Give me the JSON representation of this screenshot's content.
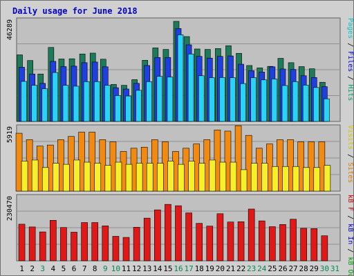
{
  "chart_data": {
    "type": "bar",
    "title": "Daily usage for June 2018",
    "categories": [
      "1",
      "2",
      "3",
      "4",
      "5",
      "6",
      "7",
      "8",
      "9",
      "10",
      "11",
      "12",
      "13",
      "14",
      "15",
      "16",
      "17",
      "18",
      "19",
      "20",
      "21",
      "22",
      "23",
      "24",
      "25",
      "26",
      "27",
      "28",
      "29",
      "30",
      "31"
    ],
    "weekend_days": [
      "3",
      "9",
      "10",
      "16",
      "17",
      "23",
      "24",
      "30",
      "31"
    ],
    "panels": [
      {
        "id": "top",
        "max_label": "46289",
        "ymax": 46289,
        "right_label_parts": [
          {
            "text": "Pages",
            "color": "#00c8c8"
          },
          {
            "text": " / ",
            "color": "#000000"
          },
          {
            "text": "Files",
            "color": "#0000e0"
          },
          {
            "text": " / ",
            "color": "#000000"
          },
          {
            "text": "Hits",
            "color": "#00a070"
          }
        ],
        "series": [
          {
            "name": "Hits",
            "color": "#1e7b5a",
            "offset": 0,
            "values": [
              30600,
              null,
              null,
              null,
              null,
              null,
              null,
              null,
              null,
              null,
              null,
              null,
              null,
              null,
              null,
              null,
              null,
              null,
              null,
              null,
              null,
              null,
              null,
              null,
              null,
              null,
              null,
              null,
              null,
              null,
              null
            ]
          },
          {
            "name": "Files",
            "color": "#1f3fe0",
            "offset": 1,
            "values": [
              24900,
              null,
              null,
              null,
              null,
              null,
              null,
              null,
              null,
              null,
              null,
              null,
              null,
              null,
              null,
              null,
              null,
              null,
              null,
              null,
              null,
              null,
              null,
              null,
              null,
              null,
              null,
              null,
              null,
              null,
              null
            ]
          },
          {
            "name": "Pages",
            "color": "#29d3f5",
            "offset": 2,
            "values": [
              18400,
              null,
              null,
              null,
              null,
              null,
              null,
              null,
              null,
              null,
              null,
              null,
              null,
              null,
              null,
              null,
              null,
              null,
              null,
              null,
              null,
              null,
              null,
              null,
              null,
              null,
              null,
              null,
              null,
              null,
              null
            ]
          }
        ]
      },
      {
        "id": "mid",
        "max_label": "5919",
        "ymax": 5919,
        "right_label_parts": [
          {
            "text": "Visits",
            "color": "#d4c400"
          },
          {
            "text": " / ",
            "color": "#000000"
          },
          {
            "text": "Sites",
            "color": "#e07a00"
          }
        ],
        "series": [
          {
            "name": "Sites",
            "color": "#f28a12",
            "offset": 0,
            "values": [
              null
            ]
          },
          {
            "name": "Visits",
            "color": "#f5f02a",
            "offset": 1,
            "values": [
              null
            ]
          }
        ]
      },
      {
        "id": "bot",
        "max_label": "230470",
        "ymax": 230470,
        "right_label_parts": [
          {
            "text": "kB F",
            "color": "#cc0000"
          },
          {
            "text": " / ",
            "color": "#000000"
          },
          {
            "text": "kB In",
            "color": "#0000cc"
          },
          {
            "text": " / ",
            "color": "#000000"
          },
          {
            "text": "kB Out",
            "color": "#00a000"
          }
        ],
        "series": [
          {
            "name": "kB F",
            "color": "#e01818",
            "offset": 0,
            "values": [
              null
            ]
          }
        ]
      }
    ]
  }
}
